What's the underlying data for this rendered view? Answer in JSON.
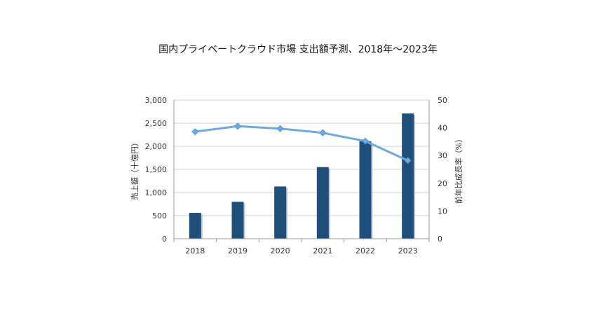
{
  "chart_data": {
    "type": "bar",
    "title": "国内プライベートクラウド市場 支出額予測、2018年～2023年",
    "categories": [
      "2018",
      "2019",
      "2020",
      "2021",
      "2022",
      "2023"
    ],
    "series": [
      {
        "name": "",
        "kind": "bar",
        "axis": "left",
        "values": [
          560,
          800,
          1130,
          1550,
          2110,
          2710
        ],
        "color": "#1f4e79"
      },
      {
        "name": "",
        "kind": "line",
        "axis": "right",
        "values": [
          38.6,
          40.6,
          39.7,
          38.2,
          35.2,
          28.2
        ],
        "color": "#6fa8dc"
      }
    ],
    "ylabel": "売上額（十億円）",
    "y2label": "前年比成長率（%）",
    "ylim": [
      0,
      3000
    ],
    "y2lim": [
      0,
      50
    ],
    "yticks": [
      "0",
      "500",
      "1,000",
      "1,500",
      "2,000",
      "2,500",
      "3,000"
    ],
    "y2ticks": [
      "0",
      "10",
      "20",
      "30",
      "40",
      "50"
    ],
    "grid": true
  }
}
